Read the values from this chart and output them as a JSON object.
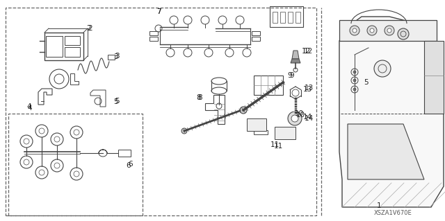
{
  "bg_color": "#ffffff",
  "diagram_code": "XSZA1V670E",
  "line_color": "#444444",
  "dashed_color": "#666666",
  "fig_w": 6.4,
  "fig_h": 3.19,
  "dpi": 100
}
